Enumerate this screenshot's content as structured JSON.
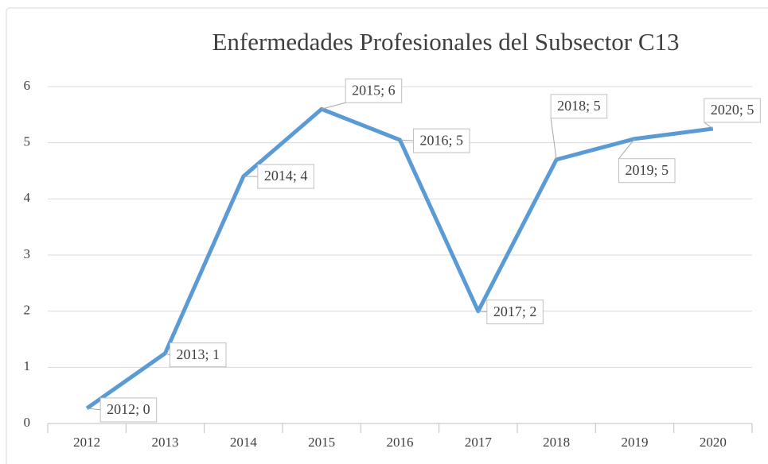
{
  "chart_data": {
    "type": "line",
    "title": "Enfermedades Profesionales del Subsector C13",
    "categories": [
      "2012",
      "2013",
      "2014",
      "2015",
      "2016",
      "2017",
      "2018",
      "2019",
      "2020"
    ],
    "series": [
      {
        "name": "Enfermedades Profesionales",
        "color": "#5b9bd5",
        "values": [
          0.27,
          1.25,
          4.4,
          5.6,
          5.05,
          2.0,
          4.7,
          5.07,
          5.25
        ],
        "value_labels": [
          "2012; 0",
          "2013; 1",
          "2014; 4",
          "2015; 6",
          "2016; 5",
          "2017; 2",
          "2018; 5",
          "2019; 5",
          "2020; 5"
        ]
      }
    ],
    "ylim": [
      0,
      6
    ],
    "yticks": [
      0,
      1,
      2,
      3,
      4,
      5,
      6
    ],
    "grid": true
  }
}
